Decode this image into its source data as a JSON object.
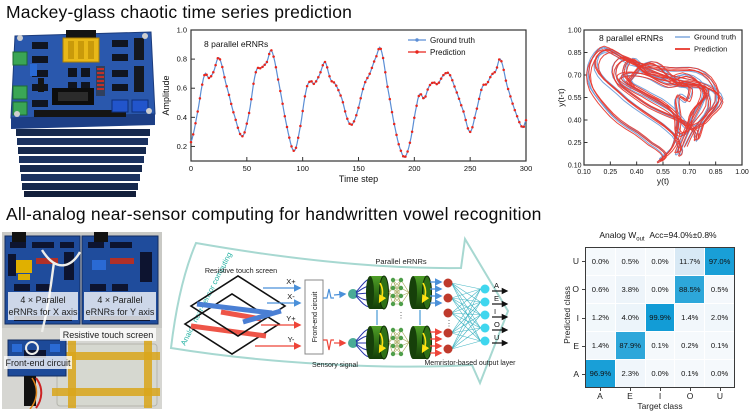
{
  "sections": {
    "top": {
      "title": "Mackey-glass chaotic time series prediction"
    },
    "bottom": {
      "title": "All-analog near-sensor computing for handwritten vowel recognition"
    }
  },
  "photos": {
    "vowel_setup": {
      "board_x_line1": "4 × Parallel",
      "board_x_line2": "eRNRs for X axis",
      "board_y_line1": "4 × Parallel",
      "board_y_line2": "eRNRs for Y axis",
      "touch_label": "Resistive touch screen",
      "frontend_label": "Front-end circuit"
    }
  },
  "diagram": {
    "banner_label": "Analog near-sensor computing",
    "touch_label": "Resistive touch screen",
    "frontend_label": "Front-end circuit",
    "signals": [
      "X+",
      "X-",
      "Y+",
      "Y-"
    ],
    "sensory_label": "Sensory signal",
    "parallel_label": "Parallel eRNRs",
    "output_layer_label": "Memristor-based output layer",
    "outputs": [
      "A",
      "E",
      "I",
      "O",
      "U"
    ],
    "dots": "⋮",
    "colors": {
      "banner": "#a7d8d1",
      "banner_text": "#25b2a3",
      "x_signal": "#4a90d9",
      "y_signal": "#ee4438"
    }
  },
  "chart_data": [
    {
      "type": "line",
      "inplot_label": "8 parallel eRNRs",
      "xlabel": "Time step",
      "ylabel": "Amplitude",
      "xlim": [
        0,
        300
      ],
      "ylim": [
        0.1,
        1.0
      ],
      "xticks": [
        0,
        50,
        100,
        150,
        200,
        250,
        300
      ],
      "yticks": [
        0.2,
        0.4,
        0.6,
        0.8,
        1.0
      ],
      "legend_position": "top-right-inside",
      "grid": false,
      "series": [
        {
          "name": "Ground truth",
          "color": "#5b8ed5"
        },
        {
          "name": "Prediction",
          "color": "#e8251c"
        }
      ],
      "keypoints": [
        [
          0,
          0.23
        ],
        [
          6,
          0.44
        ],
        [
          12,
          0.69
        ],
        [
          16,
          0.67
        ],
        [
          20,
          0.71
        ],
        [
          25,
          0.81
        ],
        [
          31,
          0.64
        ],
        [
          39,
          0.41
        ],
        [
          46,
          0.27
        ],
        [
          52,
          0.43
        ],
        [
          58,
          0.71
        ],
        [
          63,
          0.74
        ],
        [
          68,
          0.78
        ],
        [
          72,
          0.86
        ],
        [
          78,
          0.66
        ],
        [
          85,
          0.37
        ],
        [
          92,
          0.17
        ],
        [
          97,
          0.3
        ],
        [
          103,
          0.58
        ],
        [
          107,
          0.65
        ],
        [
          110,
          0.63
        ],
        [
          115,
          0.69
        ],
        [
          120,
          0.78
        ],
        [
          125,
          0.66
        ],
        [
          129,
          0.63
        ],
        [
          135,
          0.53
        ],
        [
          140,
          0.39
        ],
        [
          144,
          0.35
        ],
        [
          149,
          0.44
        ],
        [
          155,
          0.62
        ],
        [
          160,
          0.7
        ],
        [
          166,
          0.82
        ],
        [
          170,
          0.87
        ],
        [
          176,
          0.61
        ],
        [
          183,
          0.32
        ],
        [
          188,
          0.17
        ],
        [
          192,
          0.13
        ],
        [
          197,
          0.26
        ],
        [
          202,
          0.48
        ],
        [
          205,
          0.56
        ],
        [
          209,
          0.53
        ],
        [
          213,
          0.61
        ],
        [
          217,
          0.64
        ],
        [
          221,
          0.63
        ],
        [
          226,
          0.69
        ],
        [
          231,
          0.7
        ],
        [
          237,
          0.59
        ],
        [
          244,
          0.44
        ],
        [
          250,
          0.3
        ],
        [
          256,
          0.46
        ],
        [
          261,
          0.61
        ],
        [
          265,
          0.63
        ],
        [
          269,
          0.69
        ],
        [
          273,
          0.72
        ],
        [
          277,
          0.8
        ],
        [
          283,
          0.62
        ],
        [
          290,
          0.45
        ],
        [
          297,
          0.33
        ],
        [
          300,
          0.38
        ]
      ]
    },
    {
      "type": "line",
      "subtype": "phase-portrait",
      "inplot_label": "8 parallel eRNRs",
      "xlabel": "y(t)",
      "ylabel": "y(t-τ)",
      "xlim": [
        0.1,
        1.0
      ],
      "ylim": [
        0.1,
        1.0
      ],
      "xticks": [
        0.1,
        0.25,
        0.4,
        0.55,
        0.7,
        0.85,
        1.0
      ],
      "yticks": [
        0.1,
        0.25,
        0.4,
        0.55,
        0.7,
        0.85,
        1.0
      ],
      "delay": 17,
      "grid": false,
      "series": [
        {
          "name": "Ground truth",
          "color": "#6b9bd8"
        },
        {
          "name": "Prediction",
          "color": "#e8382e"
        }
      ]
    },
    {
      "type": "heatmap",
      "title_prefix": "Analog W",
      "title_sub": "out",
      "title_acc": "Acc=94.0%±0.8%",
      "xlabel": "Target class",
      "ylabel": "Predicted class",
      "columns": [
        "A",
        "E",
        "I",
        "O",
        "U"
      ],
      "rows": [
        "U",
        "O",
        "I",
        "E",
        "A"
      ],
      "values_pct": [
        [
          0.0,
          0.5,
          0.0,
          11.7,
          97.0
        ],
        [
          0.6,
          3.8,
          0.0,
          88.5,
          0.5
        ],
        [
          1.2,
          4.0,
          99.9,
          1.4,
          2.0
        ],
        [
          1.4,
          87.9,
          0.1,
          0.2,
          0.1
        ],
        [
          96.9,
          2.3,
          0.0,
          0.1,
          0.0
        ]
      ]
    }
  ]
}
